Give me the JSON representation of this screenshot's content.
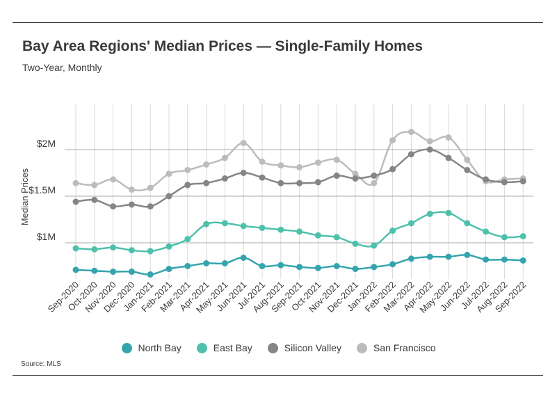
{
  "title": "Bay Area Regions' Median Prices — Single-Family Homes",
  "subtitle": "Two-Year, Monthly",
  "source": "Source:  MLS",
  "chart_data": {
    "type": "line",
    "title": "Bay Area Regions' Median Prices — Single-Family Homes",
    "subtitle": "Two-Year, Monthly",
    "ylabel": "Median Prices",
    "xlabel": "",
    "ylim": [
      0.55,
      2.3
    ],
    "yticks": [
      1.0,
      1.5,
      2.0
    ],
    "ytick_labels": [
      "$1M",
      "$1.5M",
      "$2M"
    ],
    "y_units": "$M",
    "grid": "vertical and horizontal gridlines",
    "legend_position": "bottom",
    "categories": [
      "Sep-2020",
      "Oct-2020",
      "Nov-2020",
      "Dec-2020",
      "Jan-2021",
      "Feb-2021",
      "Mar-2021",
      "Apr-2021",
      "May-2021",
      "Jun-2021",
      "Jul-2021",
      "Aug-2021",
      "Sep-2021",
      "Oct-2021",
      "Nov-2021",
      "Dec-2021",
      "Jan-2022",
      "Feb-2022",
      "Mar-2022",
      "Apr-2022",
      "May-2022",
      "Jun-2022",
      "Jul-2022",
      "Aug-2022",
      "Sep-2022"
    ],
    "series": [
      {
        "name": "North Bay",
        "color": "#35a5ad",
        "values": [
          0.71,
          0.7,
          0.69,
          0.69,
          0.66,
          0.72,
          0.75,
          0.78,
          0.78,
          0.84,
          0.75,
          0.76,
          0.74,
          0.73,
          0.75,
          0.72,
          0.74,
          0.77,
          0.83,
          0.85,
          0.85,
          0.87,
          0.82,
          0.82,
          0.81
        ]
      },
      {
        "name": "East Bay",
        "color": "#4ec1ab",
        "values": [
          0.94,
          0.93,
          0.95,
          0.92,
          0.91,
          0.96,
          1.04,
          1.2,
          1.21,
          1.18,
          1.16,
          1.14,
          1.12,
          1.08,
          1.06,
          0.99,
          0.97,
          1.13,
          1.21,
          1.31,
          1.32,
          1.21,
          1.12,
          1.06,
          1.07
        ]
      },
      {
        "name": "Silicon Valley",
        "color": "#858585",
        "values": [
          1.44,
          1.46,
          1.39,
          1.41,
          1.39,
          1.5,
          1.62,
          1.64,
          1.69,
          1.75,
          1.7,
          1.64,
          1.64,
          1.65,
          1.72,
          1.69,
          1.72,
          1.79,
          1.95,
          2.0,
          1.91,
          1.78,
          1.68,
          1.65,
          1.66
        ]
      },
      {
        "name": "San Francisco",
        "color": "#bcbcbc",
        "values": [
          1.64,
          1.62,
          1.68,
          1.57,
          1.59,
          1.74,
          1.78,
          1.84,
          1.91,
          2.07,
          1.87,
          1.83,
          1.81,
          1.86,
          1.89,
          1.74,
          1.64,
          2.1,
          2.19,
          2.09,
          2.13,
          1.89,
          1.66,
          1.68,
          1.69
        ]
      }
    ]
  }
}
